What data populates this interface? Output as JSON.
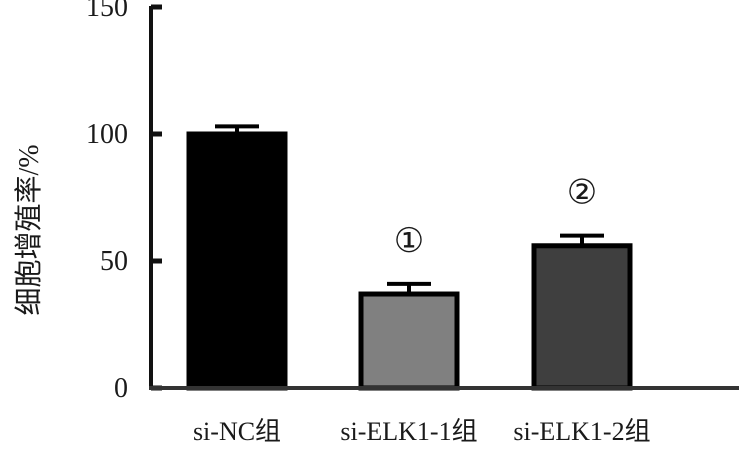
{
  "chart_data": {
    "type": "bar",
    "title": "",
    "xlabel": "",
    "ylabel": "细胞增殖率/%",
    "ylim": [
      0,
      150
    ],
    "yticks": [
      0,
      50,
      100,
      150
    ],
    "ytick_labels": [
      "0",
      "50",
      "100",
      "150"
    ],
    "categories": [
      "si-NC组",
      "si-ELK1-1组",
      "si-ELK1-2组"
    ],
    "values": [
      100,
      37,
      56
    ],
    "error_upper": [
      103,
      41,
      60
    ],
    "bar_colors": [
      "#000000",
      "#808080",
      "#3f3f3f"
    ],
    "annotations": [
      "",
      "①",
      "②"
    ],
    "grid": false
  }
}
